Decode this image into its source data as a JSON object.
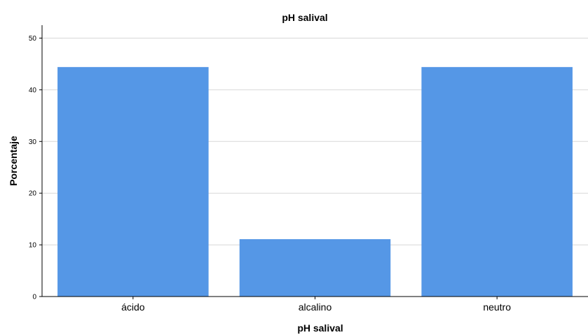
{
  "chart_data": {
    "type": "bar",
    "title": "pH salival",
    "xlabel": "pH salival",
    "ylabel": "Porcentaje",
    "categories": [
      "ácido",
      "alcalino",
      "neutro"
    ],
    "values": [
      44.4,
      11.1,
      44.4
    ],
    "ylim": [
      0,
      52.5
    ],
    "yticks": [
      0,
      10,
      20,
      30,
      40,
      50
    ],
    "grid": true,
    "bar_color": "#5597E6",
    "grid_color": "#D8D8D8",
    "axis_color": "#000000"
  }
}
